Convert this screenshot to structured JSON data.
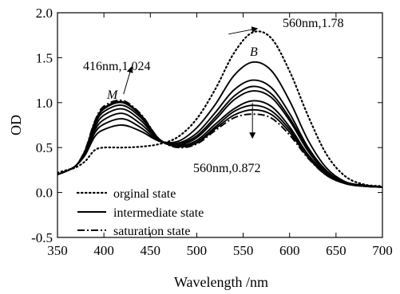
{
  "chart_data": {
    "type": "line",
    "xlabel": "Wavelength /nm",
    "ylabel": "OD",
    "xlim": [
      350,
      700
    ],
    "ylim": [
      -0.5,
      2.0
    ],
    "xticks": [
      350,
      400,
      450,
      500,
      550,
      600,
      650,
      700
    ],
    "yticks": [
      -0.5,
      0.0,
      0.5,
      1.0,
      1.5,
      2.0
    ],
    "ytick_labels": [
      "-0.5",
      "0.0",
      "0.5",
      "1.0",
      "1.5",
      "2.0"
    ],
    "grid": false,
    "legend_position": "bottom-left",
    "series": [
      {
        "name": "orginal state",
        "style": "dotted",
        "x": [
          350,
          360,
          370,
          380,
          390,
          400,
          420,
          440,
          460,
          480,
          500,
          520,
          540,
          560,
          580,
          600,
          620,
          640,
          660,
          680,
          700
        ],
        "y": [
          0.22,
          0.25,
          0.28,
          0.35,
          0.47,
          0.5,
          0.5,
          0.51,
          0.54,
          0.62,
          0.82,
          1.15,
          1.55,
          1.78,
          1.72,
          1.35,
          0.85,
          0.42,
          0.18,
          0.09,
          0.07
        ]
      },
      {
        "name": "intermediate state",
        "style": "solid",
        "x": [
          350,
          360,
          370,
          380,
          390,
          400,
          420,
          440,
          460,
          480,
          500,
          520,
          540,
          560,
          580,
          600,
          620,
          640,
          660,
          680,
          700
        ],
        "y": [
          0.2,
          0.24,
          0.3,
          0.42,
          0.62,
          0.7,
          0.75,
          0.68,
          0.57,
          0.57,
          0.72,
          0.98,
          1.3,
          1.45,
          1.36,
          1.02,
          0.58,
          0.27,
          0.12,
          0.08,
          0.06
        ]
      },
      {
        "style": "solid",
        "x": [
          350,
          360,
          370,
          380,
          390,
          400,
          420,
          440,
          460,
          480,
          500,
          520,
          540,
          560,
          580,
          600,
          620,
          640,
          660,
          680,
          700
        ],
        "y": [
          0.2,
          0.24,
          0.3,
          0.43,
          0.66,
          0.76,
          0.82,
          0.72,
          0.57,
          0.55,
          0.66,
          0.89,
          1.14,
          1.25,
          1.17,
          0.88,
          0.5,
          0.24,
          0.11,
          0.08,
          0.06
        ]
      },
      {
        "style": "solid",
        "x": [
          350,
          360,
          370,
          380,
          390,
          400,
          420,
          440,
          460,
          480,
          500,
          520,
          540,
          560,
          580,
          600,
          620,
          640,
          660,
          680,
          700
        ],
        "y": [
          0.2,
          0.24,
          0.3,
          0.44,
          0.69,
          0.81,
          0.88,
          0.76,
          0.58,
          0.54,
          0.63,
          0.84,
          1.07,
          1.18,
          1.1,
          0.83,
          0.48,
          0.23,
          0.11,
          0.08,
          0.06
        ]
      },
      {
        "style": "solid",
        "x": [
          350,
          360,
          370,
          380,
          390,
          400,
          420,
          440,
          460,
          480,
          500,
          520,
          540,
          560,
          580,
          600,
          620,
          640,
          660,
          680,
          700
        ],
        "y": [
          0.2,
          0.24,
          0.3,
          0.45,
          0.72,
          0.86,
          0.93,
          0.8,
          0.58,
          0.53,
          0.61,
          0.81,
          1.03,
          1.13,
          1.06,
          0.8,
          0.46,
          0.22,
          0.1,
          0.08,
          0.06
        ]
      },
      {
        "style": "solid",
        "x": [
          350,
          360,
          370,
          380,
          390,
          400,
          420,
          440,
          460,
          480,
          500,
          520,
          540,
          560,
          580,
          600,
          620,
          640,
          660,
          680,
          700
        ],
        "y": [
          0.2,
          0.24,
          0.3,
          0.46,
          0.75,
          0.9,
          0.97,
          0.83,
          0.59,
          0.52,
          0.58,
          0.76,
          0.93,
          1.02,
          0.96,
          0.73,
          0.42,
          0.21,
          0.1,
          0.07,
          0.06
        ]
      },
      {
        "style": "solid",
        "x": [
          350,
          360,
          370,
          380,
          390,
          400,
          420,
          440,
          460,
          480,
          500,
          520,
          540,
          560,
          580,
          600,
          620,
          640,
          660,
          680,
          700
        ],
        "y": [
          0.2,
          0.24,
          0.3,
          0.47,
          0.77,
          0.93,
          1.0,
          0.85,
          0.59,
          0.51,
          0.56,
          0.73,
          0.9,
          0.97,
          0.91,
          0.7,
          0.41,
          0.2,
          0.1,
          0.07,
          0.06
        ]
      },
      {
        "style": "solid",
        "x": [
          350,
          360,
          370,
          380,
          390,
          400,
          420,
          440,
          460,
          480,
          500,
          520,
          540,
          560,
          580,
          600,
          620,
          640,
          660,
          680,
          700
        ],
        "y": [
          0.2,
          0.24,
          0.3,
          0.47,
          0.78,
          0.94,
          1.01,
          0.86,
          0.59,
          0.51,
          0.55,
          0.71,
          0.86,
          0.92,
          0.87,
          0.67,
          0.39,
          0.19,
          0.1,
          0.07,
          0.06
        ]
      },
      {
        "name": "saturation state",
        "style": "dashdot",
        "x": [
          350,
          360,
          370,
          380,
          390,
          400,
          420,
          440,
          460,
          480,
          500,
          520,
          540,
          560,
          580,
          600,
          620,
          640,
          660,
          680,
          700
        ],
        "y": [
          0.2,
          0.24,
          0.3,
          0.48,
          0.79,
          0.96,
          1.024,
          0.87,
          0.59,
          0.5,
          0.54,
          0.69,
          0.83,
          0.872,
          0.83,
          0.64,
          0.38,
          0.19,
          0.1,
          0.07,
          0.06
        ]
      }
    ],
    "annotations": [
      {
        "text": "560nm,1.78",
        "x": 560,
        "y": 1.78
      },
      {
        "text": "416nm,1.024",
        "x": 416,
        "y": 1.024
      },
      {
        "text": "560nm,0.872",
        "x": 560,
        "y": 0.872
      },
      {
        "text": "M",
        "x": 418,
        "y": 1.02
      },
      {
        "text": "B",
        "x": 560,
        "y": 1.46
      }
    ],
    "colors": {
      "lines": "#000000",
      "background": "#ffffff"
    }
  }
}
